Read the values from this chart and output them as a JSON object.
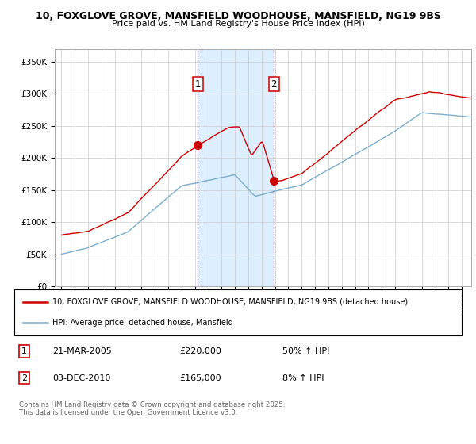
{
  "title_line1": "10, FOXGLOVE GROVE, MANSFIELD WOODHOUSE, MANSFIELD, NG19 9BS",
  "title_line2": "Price paid vs. HM Land Registry's House Price Index (HPI)",
  "legend_label1": "10, FOXGLOVE GROVE, MANSFIELD WOODHOUSE, MANSFIELD, NG19 9BS (detached house)",
  "legend_label2": "HPI: Average price, detached house, Mansfield",
  "transaction1": {
    "num": "1",
    "date": "21-MAR-2005",
    "price": "£220,000",
    "change": "50% ↑ HPI"
  },
  "transaction2": {
    "num": "2",
    "date": "03-DEC-2010",
    "price": "£165,000",
    "change": "8% ↑ HPI"
  },
  "footer": "Contains HM Land Registry data © Crown copyright and database right 2025.\nThis data is licensed under the Open Government Licence v3.0.",
  "color_red": "#cc0000",
  "color_blue": "#7aadcf",
  "color_vline": "#cc0000",
  "color_shade": "#ddeeff",
  "ylim": [
    0,
    370000
  ],
  "yticks": [
    0,
    50000,
    100000,
    150000,
    200000,
    250000,
    300000,
    350000
  ],
  "ytick_labels": [
    "£0",
    "£50K",
    "£100K",
    "£150K",
    "£200K",
    "£250K",
    "£300K",
    "£350K"
  ],
  "vline1_x": 2005.22,
  "vline2_x": 2010.92,
  "sale1_x": 2005.22,
  "sale1_y": 220000,
  "sale2_x": 2010.92,
  "sale2_y": 165000,
  "xlim_start": 1994.5,
  "xlim_end": 2025.7
}
